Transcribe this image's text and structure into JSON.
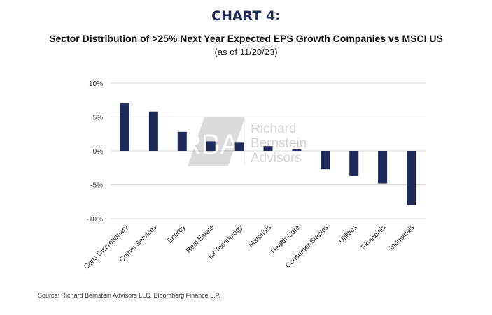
{
  "title": "CHART 4:",
  "subtitle": "Sector Distribution of >25% Next Year Expected EPS Growth Companies vs MSCI US",
  "as_of": "(as of 11/20/23)",
  "source": "Source: Richard Bernstein Advisors LLC, Bloomberg Finance L.P.",
  "watermark": {
    "logo": "RBA",
    "lines": [
      "Richard",
      "Bernstein",
      "Advisors"
    ]
  },
  "colors": {
    "bar": "#1f2a5a",
    "grid": "#d9d9d9",
    "title": "#1f2a5a"
  },
  "chart_data": {
    "type": "bar",
    "categories": [
      "Cons Discretionary",
      "Comm Services",
      "Energy",
      "Real Estate",
      "Inf Technology",
      "Materials",
      "Health Care",
      "Consumer Staples",
      "Utilities",
      "Financials",
      "Industrials"
    ],
    "values": [
      7.0,
      5.8,
      2.8,
      1.4,
      1.2,
      0.7,
      0.2,
      -2.7,
      -3.7,
      -4.8,
      -8.0
    ],
    "yticks": [
      10,
      5,
      0,
      -5,
      -10
    ],
    "ytick_labels": [
      "10%",
      "5%",
      "0%",
      "-5%",
      "-10%"
    ],
    "ylim": [
      -10,
      10
    ],
    "grid": true,
    "legend": "none"
  }
}
